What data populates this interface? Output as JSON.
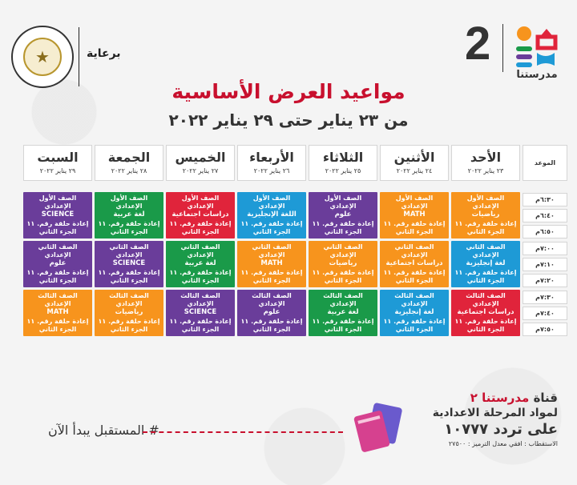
{
  "header": {
    "sponsor_label": "برعاية",
    "brand_number": "2",
    "brand_name": "مدرستنا"
  },
  "title": "مواعيد العرض الأساسية",
  "subtitle": "من ٢٣ يناير حتى ٢٩ يناير ٢٠٢٢",
  "table": {
    "time_header": "الموعد",
    "days": [
      {
        "name": "الأحد",
        "date": "٢٣ يناير ٢٠٢٢"
      },
      {
        "name": "الأثنين",
        "date": "٢٤ يناير ٢٠٢٢"
      },
      {
        "name": "الثلاثاء",
        "date": "٢٥ يناير ٢٠٢٢"
      },
      {
        "name": "الأربعاء",
        "date": "٢٦ يناير ٢٠٢٢"
      },
      {
        "name": "الخميس",
        "date": "٢٧ يناير ٢٠٢٢"
      },
      {
        "name": "الجمعة",
        "date": "٢٨ يناير ٢٠٢٢"
      },
      {
        "name": "السبت",
        "date": "٢٩ يناير ٢٠٢٢"
      }
    ],
    "times": [
      "٦:٣٠م",
      "٦:٤٠م",
      "٦:٥٠م",
      "٧:٠٠م",
      "٧:١٠م",
      "٧:٢٠م",
      "٧:٣٠م",
      "٧:٤٠م",
      "٧:٥٠م"
    ],
    "rows": [
      [
        {
          "grade": "الصف الأول الإعدادي",
          "subject": "رياضيات",
          "line1": "إعادة حلقة رقم. ١١",
          "line2": "الجزء الثاني",
          "color": "#f7941d"
        },
        {
          "grade": "الصف الأول الإعدادي",
          "subject": "MATH",
          "line1": "إعادة حلقة رقم. ١١",
          "line2": "الجزء الثاني",
          "color": "#f7941d"
        },
        {
          "grade": "الصف الأول الإعدادي",
          "subject": "علوم",
          "line1": "إعادة حلقة رقم. ١١",
          "line2": "الجزء الثاني",
          "color": "#6a3d9a"
        },
        {
          "grade": "الصف الأول الإعدادي",
          "subject": "اللغة الإنجليزية",
          "line1": "إعادة حلقة رقم. ١١",
          "line2": "الجزء الثاني",
          "color": "#1e9ad6"
        },
        {
          "grade": "الصف الأول الإعدادي",
          "subject": "دراسات اجتماعية",
          "line1": "إعادة حلقة رقم. ١١",
          "line2": "الجزء الثاني",
          "color": "#e0243b"
        },
        {
          "grade": "الصف الأول الإعدادي",
          "subject": "لغة عربية",
          "line1": "إعادة حلقة رقم. ١١",
          "line2": "الجزء الثاني",
          "color": "#1a9a49"
        },
        {
          "grade": "الصف الأول الإعدادي",
          "subject": "SCIENCE",
          "line1": "إعادة حلقة رقم. ١١",
          "line2": "الجزء الثاني",
          "color": "#6a3d9a"
        }
      ],
      [
        {
          "grade": "الصف الثاني الإعدادي",
          "subject": "لغة إنجليزية",
          "line1": "إعادة حلقة رقم. ١١",
          "line2": "الجزء الثاني",
          "color": "#1e9ad6"
        },
        {
          "grade": "الصف الثاني الإعدادي",
          "subject": "دراسات اجتماعية",
          "line1": "إعادة حلقة رقم. ١١",
          "line2": "الجزء الثاني",
          "color": "#f7941d"
        },
        {
          "grade": "الصف الثاني الإعدادي",
          "subject": "رياضيات",
          "line1": "إعادة حلقة رقم. ١١",
          "line2": "الجزء الثاني",
          "color": "#f7941d"
        },
        {
          "grade": "الصف الثاني الإعدادي",
          "subject": "MATH",
          "line1": "إعادة حلقة رقم. ١١",
          "line2": "الجزء الثاني",
          "color": "#f7941d"
        },
        {
          "grade": "الصف الثاني الإعدادي",
          "subject": "لغة عربية",
          "line1": "إعادة حلقة رقم. ١١",
          "line2": "الجزء الثاني",
          "color": "#1a9a49"
        },
        {
          "grade": "الصف الثاني الإعدادي",
          "subject": "SCIENCE",
          "line1": "إعادة حلقة رقم. ١١",
          "line2": "الجزء الثاني",
          "color": "#6a3d9a"
        },
        {
          "grade": "الصف الثاني الإعدادي",
          "subject": "علوم",
          "line1": "إعادة حلقة رقم. ١١",
          "line2": "الجزء الثاني",
          "color": "#6a3d9a"
        }
      ],
      [
        {
          "grade": "الصف الثالث الإعدادي",
          "subject": "دراسات اجتماعية",
          "line1": "إعادة حلقة رقم. ١١",
          "line2": "الجزء الثاني",
          "color": "#e0243b"
        },
        {
          "grade": "الصف الثالث الإعدادي",
          "subject": "لغة إنجليزية",
          "line1": "إعادة حلقة رقم. ١١",
          "line2": "الجزء الثاني",
          "color": "#1e9ad6"
        },
        {
          "grade": "الصف الثالث الإعدادي",
          "subject": "لغة عربية",
          "line1": "إعادة حلقة رقم. ١١",
          "line2": "الجزء الثاني",
          "color": "#1a9a49"
        },
        {
          "grade": "الصف الثالث الإعدادي",
          "subject": "علوم",
          "line1": "إعادة حلقة رقم. ١١",
          "line2": "الجزء الثاني",
          "color": "#6a3d9a"
        },
        {
          "grade": "الصف الثالث الإعدادي",
          "subject": "SCIENCE",
          "line1": "إعادة حلقة رقم. ١١",
          "line2": "الجزء الثاني",
          "color": "#6a3d9a"
        },
        {
          "grade": "الصف الثالث الإعدادي",
          "subject": "رياضيات",
          "line1": "إعادة حلقة رقم. ١١",
          "line2": "الجزء الثاني",
          "color": "#f7941d"
        },
        {
          "grade": "الصف الثالث الإعدادي",
          "subject": "MATH",
          "line1": "إعادة حلقة رقم. ١١",
          "line2": "الجزء الثاني",
          "color": "#f7941d"
        }
      ]
    ]
  },
  "footer": {
    "slogan": "# المستقبل يبدأ الآن",
    "channel_prefix": "قناة",
    "channel_name": "مدرستنا ٢",
    "line2": "لمواد المرحلة الاعدادية",
    "line3": "على تردد ١٠٧٧٧",
    "line4": "الاستقطاب : افقي معدل الترميز : ٢٧٥٠٠"
  },
  "colors": {
    "accent": "#c8102e",
    "orange": "#f7941d",
    "purple": "#6a3d9a",
    "blue": "#1e9ad6",
    "red": "#e0243b",
    "green": "#1a9a49"
  }
}
